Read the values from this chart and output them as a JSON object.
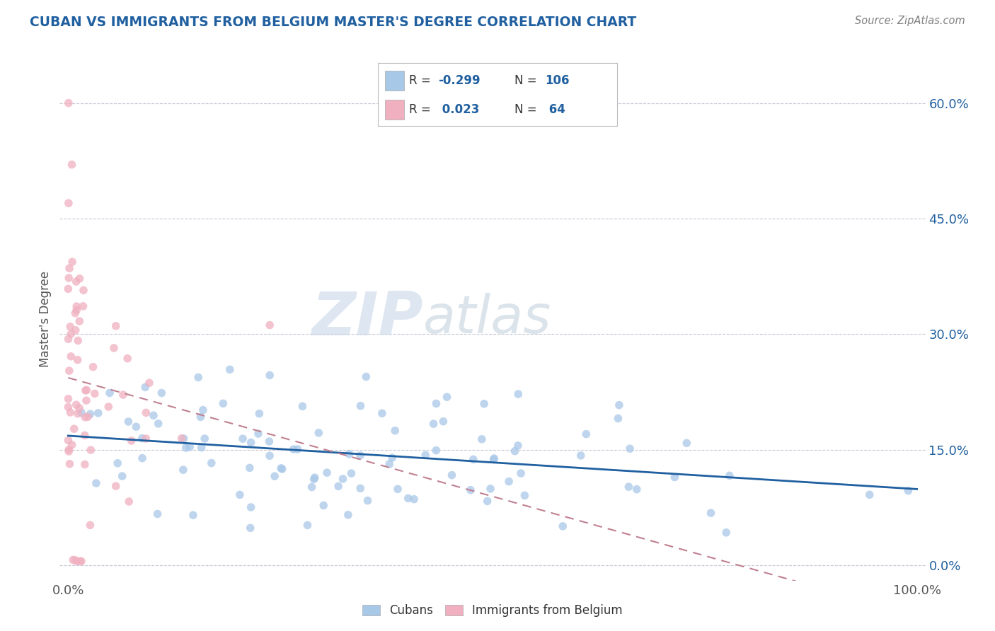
{
  "title": "CUBAN VS IMMIGRANTS FROM BELGIUM MASTER'S DEGREE CORRELATION CHART",
  "source": "Source: ZipAtlas.com",
  "watermark_part1": "ZIP",
  "watermark_part2": "atlas",
  "ylabel": "Master's Degree",
  "legend_cubans": "Cubans",
  "legend_belgium": "Immigrants from Belgium",
  "blue_color": "#a8c8e8",
  "pink_color": "#f0b0c0",
  "blue_line_color": "#2060a0",
  "pink_line_color": "#c04060",
  "pink_dash_color": "#c08090",
  "grid_color": "#c8c8d8",
  "background_color": "#ffffff",
  "title_color": "#2060a0",
  "source_color": "#808080",
  "ytick_color": "#2060a0",
  "blue_R": -0.299,
  "pink_R": 0.023,
  "blue_N": 106,
  "pink_N": 64,
  "ytick_vals": [
    0.0,
    0.15,
    0.3,
    0.45,
    0.6
  ],
  "ytick_labels": [
    "0.0%",
    "15.0%",
    "30.0%",
    "45.0%",
    "60.0%"
  ],
  "xlim": [
    -0.01,
    1.01
  ],
  "ylim": [
    -0.02,
    0.66
  ],
  "blue_seed": 42,
  "pink_seed": 7
}
